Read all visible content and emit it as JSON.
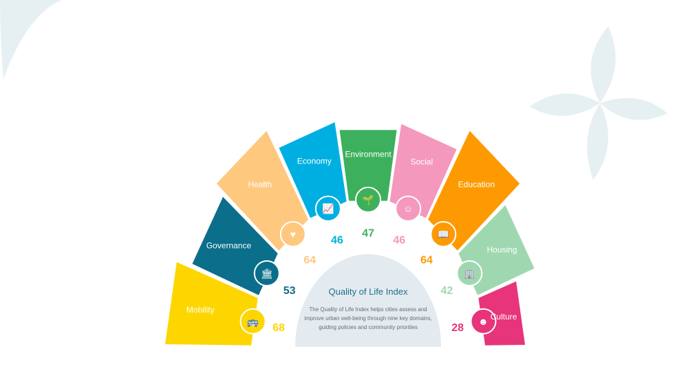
{
  "center": {
    "title": "Quality of Life Index",
    "description": "The Quality of Life Index helps cities assess and improve urban well-being through nine key domains, guiding policies and community priorities"
  },
  "domains": [
    {
      "label": "Mobility",
      "value": "68",
      "color": "#fdd600",
      "value_color": "#fdd600",
      "icon": "bus-icon"
    },
    {
      "label": "Governance",
      "value": "53",
      "color": "#0b6e8a",
      "value_color": "#0b6e8a",
      "icon": "government-building-icon"
    },
    {
      "label": "Health",
      "value": "64",
      "color": "#fec87e",
      "value_color": "#fec87e",
      "icon": "heart-plus-icon"
    },
    {
      "label": "Economy",
      "value": "46",
      "color": "#00afe2",
      "value_color": "#00afe2",
      "icon": "growth-chart-icon"
    },
    {
      "label": "Environment",
      "value": "47",
      "color": "#3db05e",
      "value_color": "#3db05e",
      "icon": "sprout-icon"
    },
    {
      "label": "Social",
      "value": "46",
      "color": "#f498bd",
      "value_color": "#f498bd",
      "icon": "chat-smile-icon"
    },
    {
      "label": "Education",
      "value": "64",
      "color": "#fd9a01",
      "value_color": "#fd9a01",
      "icon": "book-icon"
    },
    {
      "label": "Housing",
      "value": "42",
      "color": "#9fd8b0",
      "value_color": "#9fd8b0",
      "icon": "buildings-icon"
    },
    {
      "label": "Culture",
      "value": "28",
      "color": "#e7347a",
      "value_color": "#e7347a",
      "icon": "theater-mask-icon"
    }
  ],
  "colors": {
    "dome": "#e3ebf0",
    "decoration": "#e6f0f3"
  }
}
